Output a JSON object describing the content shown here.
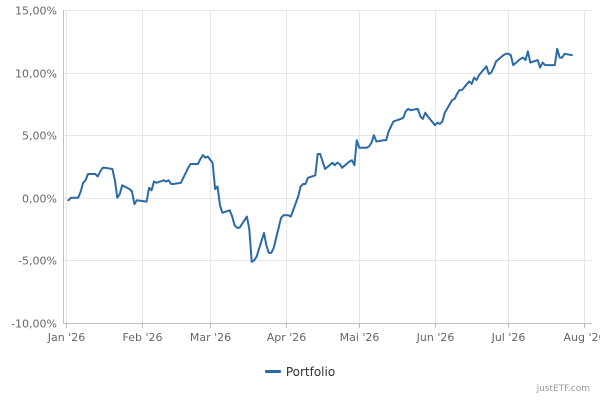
{
  "chart_data": {
    "type": "line",
    "title": "",
    "xlabel": "",
    "ylabel": "",
    "ylim": [
      -10,
      15
    ],
    "y_ticks": [
      {
        "value": 15,
        "label": "15,00%"
      },
      {
        "value": 10,
        "label": "10,00%"
      },
      {
        "value": 5,
        "label": "5,00%"
      },
      {
        "value": 0,
        "label": "0,00%"
      },
      {
        "value": -5,
        "label": "-5,00%"
      },
      {
        "value": -10,
        "label": "-10,00%"
      }
    ],
    "x_range": [
      "2026-01-01",
      "2026-08-03"
    ],
    "x_ticks": [
      {
        "date": "2026-01-01",
        "label": "Jan '26"
      },
      {
        "date": "2026-02-01",
        "label": "Feb '26"
      },
      {
        "date": "2026-03-01",
        "label": "Mar '26"
      },
      {
        "date": "2026-04-01",
        "label": "Apr '26"
      },
      {
        "date": "2026-05-01",
        "label": "Mai '26"
      },
      {
        "date": "2026-06-01",
        "label": "Jun '26"
      },
      {
        "date": "2026-07-01",
        "label": "Jul '26"
      },
      {
        "date": "2026-08-01",
        "label": "Aug '26"
      }
    ],
    "grid": true,
    "legend_position": "bottom-center",
    "series": [
      {
        "name": "Portfolio",
        "color": "#2c6aa6",
        "points": [
          [
            "2026-01-02",
            -0.2
          ],
          [
            "2026-01-03",
            0.0
          ],
          [
            "2026-01-06",
            0.0
          ],
          [
            "2026-01-07",
            0.5
          ],
          [
            "2026-01-08",
            1.2
          ],
          [
            "2026-01-09",
            1.4
          ],
          [
            "2026-01-10",
            1.9
          ],
          [
            "2026-01-13",
            1.9
          ],
          [
            "2026-01-14",
            1.7
          ],
          [
            "2026-01-15",
            2.1
          ],
          [
            "2026-01-16",
            2.4
          ],
          [
            "2026-01-17",
            2.4
          ],
          [
            "2026-01-20",
            2.3
          ],
          [
            "2026-01-21",
            1.4
          ],
          [
            "2026-01-22",
            0.0
          ],
          [
            "2026-01-23",
            0.3
          ],
          [
            "2026-01-24",
            1.0
          ],
          [
            "2026-01-27",
            0.7
          ],
          [
            "2026-01-28",
            0.5
          ],
          [
            "2026-01-29",
            -0.5
          ],
          [
            "2026-01-30",
            -0.2
          ],
          [
            "2026-02-03",
            -0.3
          ],
          [
            "2026-02-04",
            0.8
          ],
          [
            "2026-02-05",
            0.6
          ],
          [
            "2026-02-06",
            1.3
          ],
          [
            "2026-02-07",
            1.2
          ],
          [
            "2026-02-10",
            1.4
          ],
          [
            "2026-02-11",
            1.3
          ],
          [
            "2026-02-12",
            1.4
          ],
          [
            "2026-02-13",
            1.1
          ],
          [
            "2026-02-14",
            1.1
          ],
          [
            "2026-02-17",
            1.2
          ],
          [
            "2026-02-18",
            1.6
          ],
          [
            "2026-02-19",
            2.0
          ],
          [
            "2026-02-20",
            2.4
          ],
          [
            "2026-02-21",
            2.7
          ],
          [
            "2026-02-24",
            2.7
          ],
          [
            "2026-02-25",
            3.1
          ],
          [
            "2026-02-26",
            3.4
          ],
          [
            "2026-02-27",
            3.2
          ],
          [
            "2026-02-28",
            3.3
          ],
          [
            "2026-03-02",
            2.8
          ],
          [
            "2026-03-03",
            0.7
          ],
          [
            "2026-03-04",
            0.9
          ],
          [
            "2026-03-05",
            -0.6
          ],
          [
            "2026-03-06",
            -1.2
          ],
          [
            "2026-03-09",
            -1.0
          ],
          [
            "2026-03-10",
            -1.5
          ],
          [
            "2026-03-11",
            -2.2
          ],
          [
            "2026-03-12",
            -2.4
          ],
          [
            "2026-03-13",
            -2.4
          ],
          [
            "2026-03-16",
            -1.5
          ],
          [
            "2026-03-17",
            -2.5
          ],
          [
            "2026-03-18",
            -5.1
          ],
          [
            "2026-03-19",
            -5.0
          ],
          [
            "2026-03-20",
            -4.7
          ],
          [
            "2026-03-23",
            -2.8
          ],
          [
            "2026-03-24",
            -3.8
          ],
          [
            "2026-03-25",
            -4.4
          ],
          [
            "2026-03-26",
            -4.4
          ],
          [
            "2026-03-27",
            -4.0
          ],
          [
            "2026-03-30",
            -1.6
          ],
          [
            "2026-03-31",
            -1.4
          ],
          [
            "2026-04-01",
            -1.4
          ],
          [
            "2026-04-02",
            -1.4
          ],
          [
            "2026-04-03",
            -1.5
          ],
          [
            "2026-04-06",
            0.1
          ],
          [
            "2026-04-07",
            0.9
          ],
          [
            "2026-04-08",
            1.1
          ],
          [
            "2026-04-09",
            1.1
          ],
          [
            "2026-04-10",
            1.6
          ],
          [
            "2026-04-13",
            1.8
          ],
          [
            "2026-04-14",
            3.5
          ],
          [
            "2026-04-15",
            3.5
          ],
          [
            "2026-04-16",
            2.9
          ],
          [
            "2026-04-17",
            2.3
          ],
          [
            "2026-04-20",
            2.8
          ],
          [
            "2026-04-21",
            2.6
          ],
          [
            "2026-04-22",
            2.8
          ],
          [
            "2026-04-23",
            2.7
          ],
          [
            "2026-04-24",
            2.4
          ],
          [
            "2026-04-27",
            2.9
          ],
          [
            "2026-04-28",
            3.0
          ],
          [
            "2026-04-29",
            2.6
          ],
          [
            "2026-04-30",
            4.6
          ],
          [
            "2026-05-01",
            4.0
          ],
          [
            "2026-05-04",
            4.0
          ],
          [
            "2026-05-05",
            4.1
          ],
          [
            "2026-05-06",
            4.4
          ],
          [
            "2026-05-07",
            5.0
          ],
          [
            "2026-05-08",
            4.5
          ],
          [
            "2026-05-11",
            4.6
          ],
          [
            "2026-05-12",
            4.6
          ],
          [
            "2026-05-13",
            5.3
          ],
          [
            "2026-05-14",
            5.7
          ],
          [
            "2026-05-15",
            6.1
          ],
          [
            "2026-05-18",
            6.3
          ],
          [
            "2026-05-19",
            6.4
          ],
          [
            "2026-05-20",
            6.9
          ],
          [
            "2026-05-21",
            7.1
          ],
          [
            "2026-05-22",
            7.0
          ],
          [
            "2026-05-25",
            7.1
          ],
          [
            "2026-05-26",
            6.5
          ],
          [
            "2026-05-27",
            6.3
          ],
          [
            "2026-05-28",
            6.8
          ],
          [
            "2026-05-29",
            6.5
          ],
          [
            "2026-06-01",
            5.8
          ],
          [
            "2026-06-02",
            6.0
          ],
          [
            "2026-06-03",
            5.9
          ],
          [
            "2026-06-04",
            6.1
          ],
          [
            "2026-06-05",
            6.8
          ],
          [
            "2026-06-08",
            7.8
          ],
          [
            "2026-06-09",
            7.9
          ],
          [
            "2026-06-10",
            8.3
          ],
          [
            "2026-06-11",
            8.6
          ],
          [
            "2026-06-12",
            8.6
          ],
          [
            "2026-06-15",
            9.3
          ],
          [
            "2026-06-16",
            9.1
          ],
          [
            "2026-06-17",
            9.6
          ],
          [
            "2026-06-18",
            9.4
          ],
          [
            "2026-06-19",
            9.8
          ],
          [
            "2026-06-22",
            10.5
          ],
          [
            "2026-06-23",
            9.9
          ],
          [
            "2026-06-24",
            10.0
          ],
          [
            "2026-06-25",
            10.4
          ],
          [
            "2026-06-26",
            10.9
          ],
          [
            "2026-06-29",
            11.4
          ],
          [
            "2026-06-30",
            11.5
          ],
          [
            "2026-07-01",
            11.5
          ],
          [
            "2026-07-02",
            11.4
          ],
          [
            "2026-07-03",
            10.6
          ],
          [
            "2026-07-06",
            11.1
          ],
          [
            "2026-07-07",
            11.2
          ],
          [
            "2026-07-08",
            11.0
          ],
          [
            "2026-07-09",
            11.7
          ],
          [
            "2026-07-10",
            10.8
          ],
          [
            "2026-07-13",
            11.0
          ],
          [
            "2026-07-14",
            10.4
          ],
          [
            "2026-07-15",
            10.8
          ],
          [
            "2026-07-16",
            10.6
          ],
          [
            "2026-07-17",
            10.6
          ],
          [
            "2026-07-20",
            10.6
          ],
          [
            "2026-07-21",
            11.9
          ],
          [
            "2026-07-22",
            11.2
          ],
          [
            "2026-07-23",
            11.2
          ],
          [
            "2026-07-24",
            11.5
          ],
          [
            "2026-07-27",
            11.4
          ]
        ]
      }
    ]
  },
  "legend": {
    "label": "Portfolio",
    "color": "#2c6aa6"
  },
  "credit": "justETF.com"
}
